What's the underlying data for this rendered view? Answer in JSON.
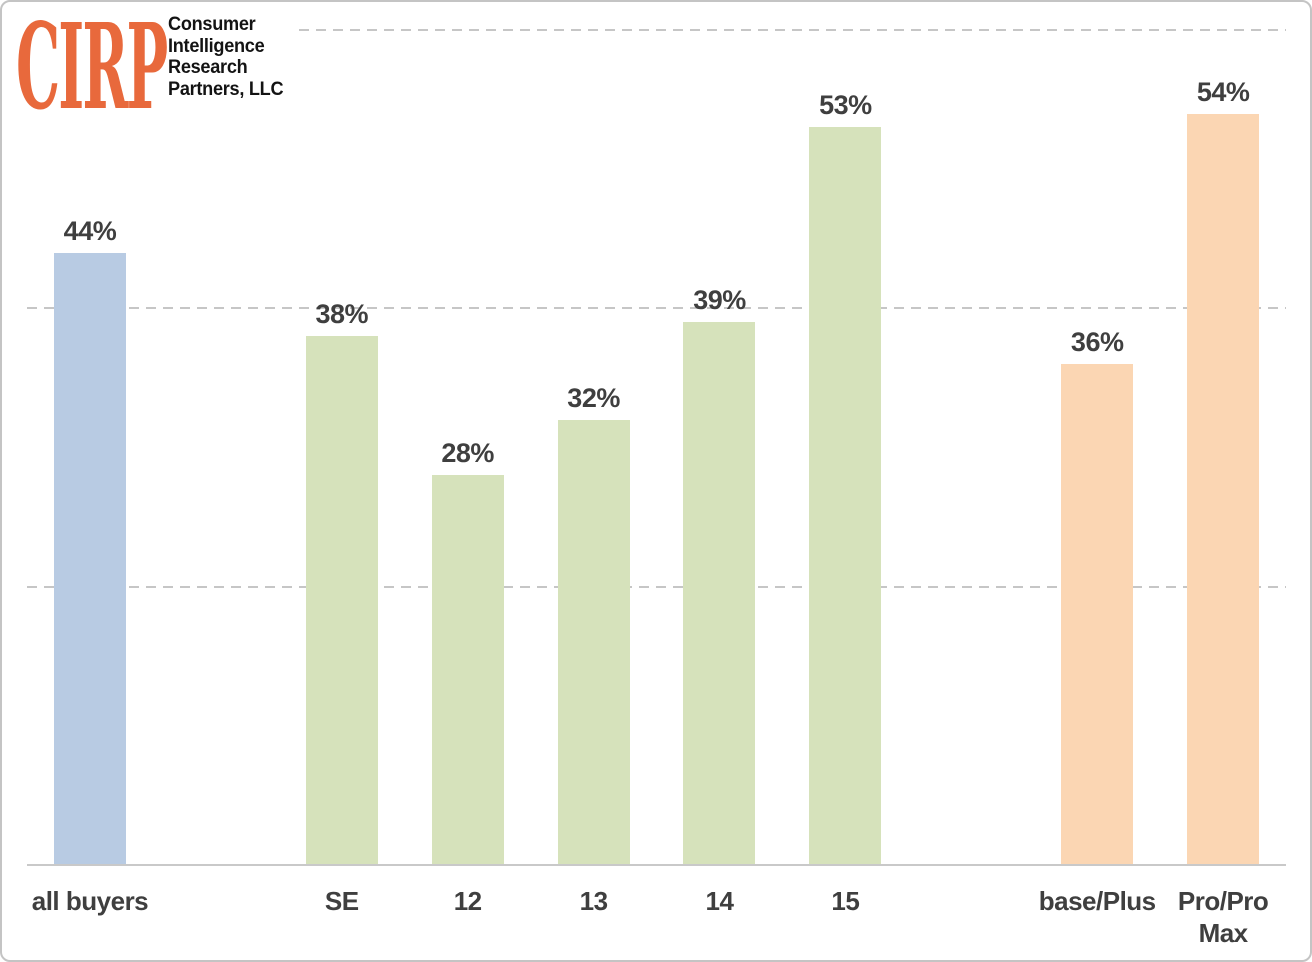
{
  "logo": {
    "abbr": "CIRP",
    "company_lines": [
      "Consumer",
      "Intelligence",
      "Research",
      "Partners, LLC"
    ]
  },
  "colors": {
    "all_buyers": "#b8cbe3",
    "iphone_models": "#d6e2bb",
    "model_tiers": "#fbd6b3",
    "data_label": "#3f3f3f",
    "gridline": "#c6c6c6",
    "axis_line": "#c9c9c9",
    "logo_orange": "#e8693c"
  },
  "chart_data": {
    "type": "bar",
    "title": "",
    "xlabel": "",
    "ylabel": "",
    "ylim": [
      0,
      60
    ],
    "gridline_values": [
      20,
      40,
      60
    ],
    "grid_style": "dashed-horizontal",
    "legend": false,
    "categories": [
      {
        "label_lines": [
          "all buyers"
        ],
        "value": 44,
        "data_label": "44%",
        "color_key": "all_buyers"
      },
      {
        "label_lines": [],
        "value": null,
        "data_label": "",
        "color_key": ""
      },
      {
        "label_lines": [
          "SE"
        ],
        "value": 38,
        "data_label": "38%",
        "color_key": "iphone_models"
      },
      {
        "label_lines": [
          "12"
        ],
        "value": 28,
        "data_label": "28%",
        "color_key": "iphone_models"
      },
      {
        "label_lines": [
          "13"
        ],
        "value": 32,
        "data_label": "32%",
        "color_key": "iphone_models"
      },
      {
        "label_lines": [
          "14"
        ],
        "value": 39,
        "data_label": "39%",
        "color_key": "iphone_models"
      },
      {
        "label_lines": [
          "15"
        ],
        "value": 53,
        "data_label": "53%",
        "color_key": "iphone_models"
      },
      {
        "label_lines": [],
        "value": null,
        "data_label": "",
        "color_key": ""
      },
      {
        "label_lines": [
          "base/Plus"
        ],
        "value": 36,
        "data_label": "36%",
        "color_key": "model_tiers"
      },
      {
        "label_lines": [
          "Pro/Pro",
          "Max"
        ],
        "value": 54,
        "data_label": "54%",
        "color_key": "model_tiers"
      }
    ]
  }
}
